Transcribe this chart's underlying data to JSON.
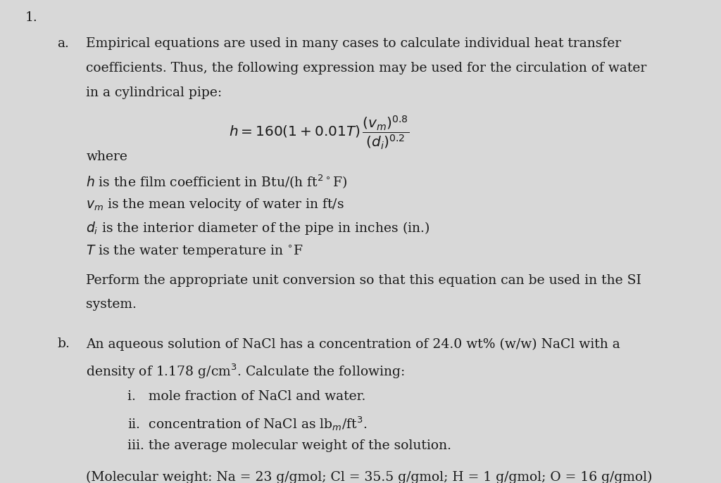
{
  "bg_color": "#d8d8d8",
  "text_color": "#1a1a1a",
  "font_size": 13.5,
  "title_number": "1.",
  "part_a_label": "a.",
  "part_b_label": "b.",
  "part_a_intro": "Empirical equations are used in many cases to calculate individual heat transfer\ncoefficients. Thus, the following expression may be used for the circulation of water\nin a cylindrical pipe:",
  "equation_main": "$h = 160(1 + 0.01T)\\,\\dfrac{(v_m)^{0.8}}{(d_i)^{0.2}}$",
  "where_label": "where",
  "definitions": [
    "$h$ is the film coefficient in Btu/(h ft$^{2\\circ}$F)",
    "$v_m$ is the mean velocity of water in ft/s",
    "$d_i$ is the interior diameter of the pipe in inches (in.)",
    "$T$ is the water temperature in $^{\\circ}$F"
  ],
  "part_a_task": "Perform the appropriate unit conversion so that this equation can be used in the SI\nsystem.",
  "part_b_intro": "An aqueous solution of NaCl has a concentration of 24.0 wt% (w/w) NaCl with a\ndensity of 1.178 g/cm$^3$. Calculate the following:",
  "sub_items": [
    "i.   mole fraction of NaCl and water.",
    "ii.  concentration of NaCl as lb$_m$/ft$^3$.",
    "iii. the average molecular weight of the solution."
  ],
  "mol_weight_note": "(Molecular weight: Na = 23 g/gmol; Cl = 35.5 g/gmol; H = 1 g/gmol; O = 16 g/gmol)"
}
